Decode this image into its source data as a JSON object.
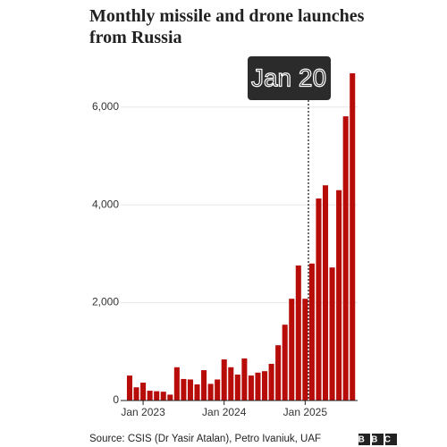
{
  "chart_data": {
    "type": "bar",
    "title": "Monthly missile and drone launches from Russia",
    "source": "Source: CSIS (Dr Yasir Atalan), Petro Ivaniuk, UAF",
    "logo": "BBC",
    "annotation": "Jan 20",
    "categories": [
      null,
      null,
      "Jan 2023",
      null,
      null,
      null,
      null,
      null,
      null,
      null,
      null,
      null,
      null,
      null,
      "Jan 2024",
      null,
      null,
      null,
      null,
      null,
      null,
      null,
      null,
      null,
      null,
      null,
      "Jan 2025",
      null,
      null,
      null,
      null,
      null,
      null,
      null
    ],
    "values": [
      510,
      270,
      365,
      200,
      190,
      180,
      120,
      680,
      440,
      430,
      330,
      620,
      340,
      430,
      840,
      680,
      530,
      860,
      510,
      570,
      600,
      750,
      1130,
      1550,
      2080,
      2760,
      2080,
      2800,
      4130,
      4400,
      2720,
      4300,
      5810,
      6690
    ],
    "color": "#b80c09",
    "ylim": [
      0,
      7000
    ],
    "yticks": [
      0,
      {
        "value": 2000,
        "label": "2,000"
      },
      {
        "value": 4000,
        "label": "4,000"
      },
      {
        "value": 6000,
        "label": "6,000"
      }
    ],
    "grid": true
  }
}
